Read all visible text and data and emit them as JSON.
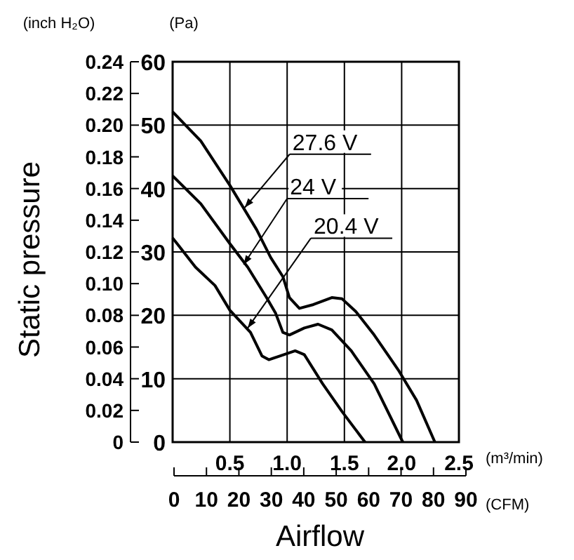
{
  "chart_data": {
    "type": "line",
    "y2label": "Static pressure",
    "xlabel": "Airflow",
    "xlim": [
      0,
      2.5
    ],
    "xticks": [
      0.5,
      {
        "value": 1,
        "label": "1.0"
      },
      1.5,
      {
        "value": 2,
        "label": "2.0"
      },
      2.5
    ],
    "ylim": [
      0,
      60
    ],
    "yticks": [
      0,
      10,
      20,
      30,
      40,
      50,
      60
    ],
    "y2lim": [
      0,
      0.24
    ],
    "y2ticks": [
      0,
      0.02,
      0.04,
      0.06,
      0.08,
      {
        "value": 0.1,
        "label": "0.10"
      },
      0.12,
      0.14,
      0.16,
      0.18,
      {
        "value": 0.2,
        "label": "0.20"
      },
      0.22,
      0.24
    ],
    "x2lim": [
      0,
      90
    ],
    "x2ticks": [
      0,
      10,
      20,
      30,
      40,
      50,
      60,
      70,
      80,
      90
    ],
    "grid": true,
    "line_style": "solid",
    "marker": "none",
    "annotations": [
      "(inch H₂O)",
      "(Pa)",
      "(m³/min)",
      "(CFM)",
      {
        "text": "27.6 V",
        "x": 0.63,
        "y": 37
      },
      {
        "text": "24 V",
        "x": 0.62,
        "y": 28
      },
      {
        "text": "20.4 V",
        "x": 0.656,
        "y": 18
      }
    ],
    "series": [
      {
        "color": "#000000",
        "x": [
          0,
          0.246,
          0.5,
          0.734,
          0.857,
          0.963,
          1.02,
          1.107,
          1.23,
          1.39,
          1.48,
          1.6,
          1.76,
          1.97,
          2.13,
          2.29
        ],
        "values": [
          52.1,
          47.5,
          40.5,
          33.5,
          29.1,
          26.1,
          22.8,
          21.1,
          21.7,
          22.8,
          22.6,
          20.6,
          16.9,
          11.4,
          6.6,
          0
        ]
      },
      {
        "color": "#000000",
        "x": [
          0,
          0.246,
          0.5,
          0.656,
          0.82,
          0.9,
          0.963,
          1.02,
          1.15,
          1.27,
          1.39,
          1.56,
          1.76,
          2.01
        ],
        "values": [
          42,
          37.6,
          31.3,
          27.6,
          22.8,
          20.3,
          17.3,
          16.9,
          18,
          18.6,
          17.7,
          14.4,
          9.2,
          0
        ]
      },
      {
        "color": "#000000",
        "x": [
          0,
          0.2,
          0.37,
          0.5,
          0.68,
          0.78,
          0.84,
          0.94,
          1.07,
          1.15,
          1.31,
          1.48,
          1.68
        ],
        "values": [
          32.2,
          27.6,
          24.7,
          20.8,
          17.3,
          13.6,
          13,
          13.6,
          14.4,
          13.8,
          9.2,
          4.8,
          0
        ]
      }
    ]
  }
}
